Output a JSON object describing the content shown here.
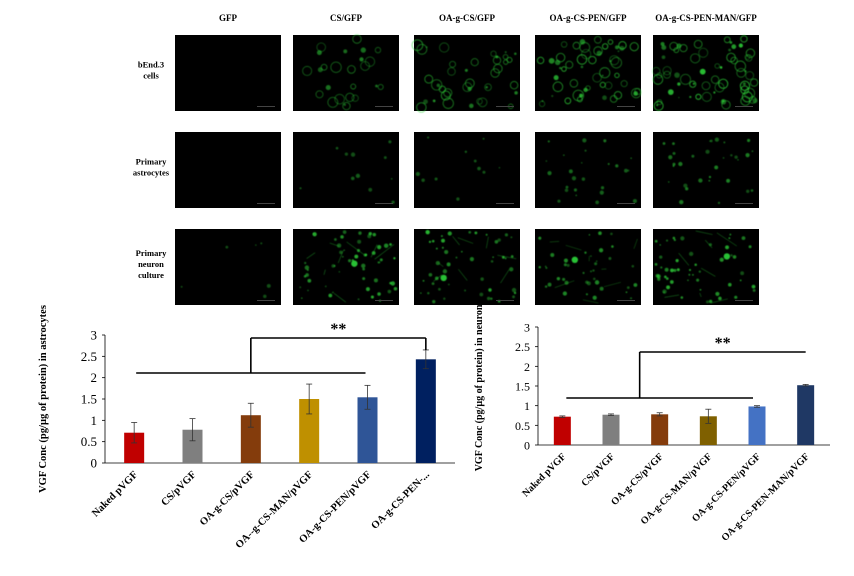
{
  "micrograph_panel": {
    "column_headers": [
      "GFP",
      "CS/GFP",
      "OA-g-CS/GFP",
      "OA-g-CS-PEN/GFP",
      "OA-g-CS-PEN-MAN/GFP"
    ],
    "row_labels": [
      [
        "bEnd.3",
        "cells"
      ],
      [
        "Primary",
        "astrocytes"
      ],
      [
        "Primary",
        "neuron",
        "culture"
      ]
    ],
    "fluorescence_color": "#2fd63a",
    "background_color": "#000000"
  },
  "chart_data": [
    {
      "type": "bar",
      "categories": [
        "Naked pVGF",
        "CS/pVGF",
        "OA-g-CS/pVGF",
        "OA--g-CS-MAN/pVGF",
        "OA-g-CS-PEN/pVGF",
        "OA-g-CS-PEN-..."
      ],
      "values": [
        0.71,
        0.78,
        1.12,
        1.5,
        1.54,
        2.43
      ],
      "errors": [
        0.24,
        0.26,
        0.28,
        0.35,
        0.28,
        0.22
      ],
      "colors": [
        "#c00000",
        "#7f7f7f",
        "#843c0c",
        "#bf9000",
        "#2f5597",
        "#002060"
      ],
      "ylabel": "VGF Conc (pg/µg of protein) in astrocytes",
      "ylim": [
        0,
        3
      ],
      "yticks": [
        "0",
        "0.5",
        "1",
        "1.5",
        "2",
        "2.5",
        "3"
      ],
      "significance": "**"
    },
    {
      "type": "bar",
      "categories": [
        "Naked pVGF",
        "CS/pVGF",
        "OA-g-CS/pVGF",
        "OA-g-CS-MAN/pVGF",
        "OA-g-CS-PEN/pVGF",
        "OA-g-CS-PEN-MAN/pVGF"
      ],
      "values": [
        0.72,
        0.77,
        0.78,
        0.73,
        0.98,
        1.52
      ],
      "errors": [
        0.02,
        0.02,
        0.04,
        0.18,
        0.02,
        0.02
      ],
      "colors": [
        "#c00000",
        "#7f7f7f",
        "#843c0c",
        "#7f6000",
        "#4472c4",
        "#1f3864"
      ],
      "ylabel": "VGF Conc (pg/µg of protein) in neurons",
      "ylim": [
        0,
        3
      ],
      "yticks": [
        "0",
        "0.5",
        "1",
        "1.5",
        "2",
        "2.5",
        "3"
      ],
      "significance": "**"
    }
  ]
}
